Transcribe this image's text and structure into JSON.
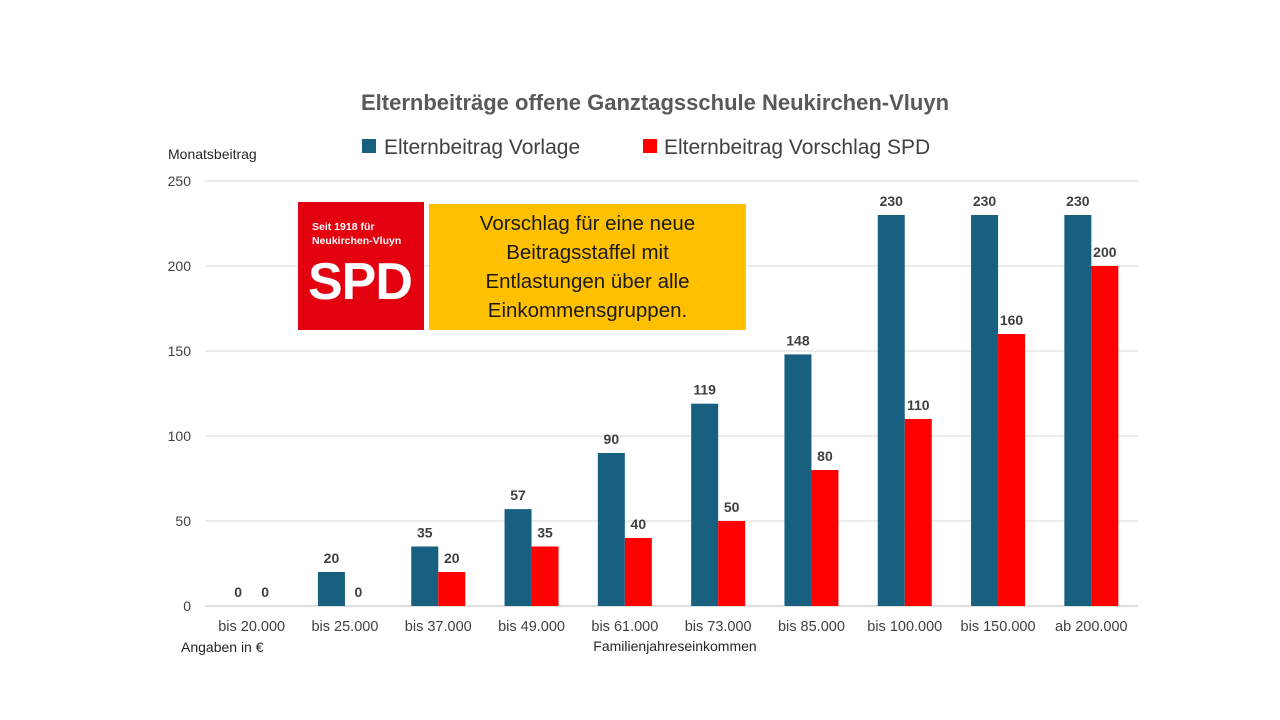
{
  "chart_data": {
    "type": "bar",
    "title": "Elternbeiträge offene Ganztagsschule Neukirchen-Vluyn",
    "ylabel": "Monatsbeitrag",
    "xlabel": "Familienjahreseinkommen",
    "note": "Angaben in €",
    "ylim": [
      0,
      250
    ],
    "yticks": [
      0,
      50,
      100,
      150,
      200,
      250
    ],
    "grid": true,
    "legend_position": "top",
    "categories": [
      "bis 20.000",
      "bis 25.000",
      "bis 37.000",
      "bis 49.000",
      "bis 61.000",
      "bis 73.000",
      "bis 85.000",
      "bis 100.000",
      "bis 150.000",
      "ab 200.000"
    ],
    "series": [
      {
        "name": "Elternbeitrag Vorlage",
        "color": "#17607f",
        "values": [
          0,
          20,
          35,
          57,
          90,
          119,
          148,
          230,
          230,
          230
        ]
      },
      {
        "name": "Elternbeitrag Vorschlag SPD",
        "color": "#ff0000",
        "values": [
          0,
          0,
          20,
          35,
          40,
          50,
          80,
          110,
          160,
          200
        ]
      }
    ]
  },
  "logo": {
    "slogan": [
      "Seit 1918 für",
      "Neukirchen-Vluyn"
    ],
    "text": "SPD",
    "color": "#e3000f"
  },
  "callout": {
    "text": "Vorschlag für eine neue Beitragsstaffel mit Entlastungen über alle Einkommensgruppen.",
    "color": "#ffc000"
  }
}
